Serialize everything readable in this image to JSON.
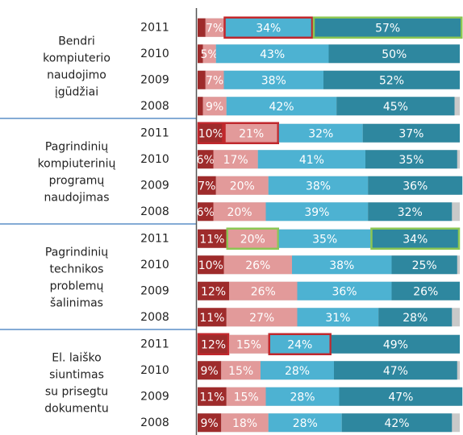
{
  "chart_data": {
    "type": "stacked-bar-horizontal",
    "colors": [
      "#9e2b2b",
      "#e29a9a",
      "#4db2d2",
      "#2e879f"
    ],
    "xlim": [
      0,
      100
    ],
    "groups": [
      {
        "label": [
          "Bendri",
          "kompiuterio",
          "naudojimo",
          "įgūdžiai"
        ],
        "rows": [
          {
            "year": 2011,
            "values": [
              3,
              7,
              34,
              57
            ],
            "value_labels": [
              null,
              "7%",
              "34%",
              "57%"
            ],
            "box_colors": [
              null,
              null,
              "#c0282d",
              "#8cc654"
            ]
          },
          {
            "year": 2010,
            "values": [
              2,
              5,
              43,
              50
            ],
            "value_labels": [
              null,
              "5%",
              "43%",
              "50%"
            ],
            "box_colors": [
              null,
              null,
              null,
              null
            ]
          },
          {
            "year": 2009,
            "values": [
              3,
              7,
              38,
              52
            ],
            "value_labels": [
              null,
              "7%",
              "38%",
              "52%"
            ],
            "box_colors": [
              null,
              null,
              null,
              null
            ]
          },
          {
            "year": 2008,
            "values": [
              2,
              9,
              42,
              45
            ],
            "value_labels": [
              null,
              "9%",
              "42%",
              "45%"
            ],
            "box_colors": [
              null,
              null,
              null,
              null
            ]
          }
        ]
      },
      {
        "label": [
          "Pagrindinių",
          "kompiuterinių",
          "programų",
          "naudojimas"
        ],
        "rows": [
          {
            "year": 2011,
            "values": [
              10,
              21,
              32,
              37
            ],
            "value_labels": [
              "10%",
              "21%",
              "32%",
              "37%"
            ],
            "box_colors": [
              "#c0282d",
              "#c0282d",
              null,
              null
            ]
          },
          {
            "year": 2010,
            "values": [
              6,
              17,
              41,
              35
            ],
            "value_labels": [
              "6%",
              "17%",
              "41%",
              "35%"
            ],
            "box_colors": [
              null,
              null,
              null,
              null
            ]
          },
          {
            "year": 2009,
            "values": [
              7,
              20,
              38,
              36
            ],
            "value_labels": [
              "7%",
              "20%",
              "38%",
              "36%"
            ],
            "box_colors": [
              null,
              null,
              null,
              null
            ]
          },
          {
            "year": 2008,
            "values": [
              6,
              20,
              39,
              32
            ],
            "value_labels": [
              "6%",
              "20%",
              "39%",
              "32%"
            ],
            "box_colors": [
              null,
              null,
              null,
              null
            ]
          }
        ]
      },
      {
        "label": [
          "Pagrindinių",
          "technikos",
          "problemų",
          "šalinimas"
        ],
        "rows": [
          {
            "year": 2011,
            "values": [
              11,
              20,
              35,
              34
            ],
            "value_labels": [
              "11%",
              "20%",
              "35%",
              "34%"
            ],
            "box_colors": [
              null,
              "#8cc654",
              null,
              "#8cc654"
            ]
          },
          {
            "year": 2010,
            "values": [
              10,
              26,
              38,
              25
            ],
            "value_labels": [
              "10%",
              "26%",
              "38%",
              "25%"
            ],
            "box_colors": [
              null,
              null,
              null,
              null
            ]
          },
          {
            "year": 2009,
            "values": [
              12,
              26,
              36,
              26
            ],
            "value_labels": [
              "12%",
              "26%",
              "36%",
              "26%"
            ],
            "box_colors": [
              null,
              null,
              null,
              null
            ]
          },
          {
            "year": 2008,
            "values": [
              11,
              27,
              31,
              28
            ],
            "value_labels": [
              "11%",
              "27%",
              "31%",
              "28%"
            ],
            "box_colors": [
              null,
              null,
              null,
              null
            ]
          }
        ]
      },
      {
        "label": [
          "El. laiško",
          "siuntimas",
          "su prisegtu",
          "dokumentu"
        ],
        "rows": [
          {
            "year": 2011,
            "values": [
              12,
              15,
              24,
              49
            ],
            "value_labels": [
              "12%",
              "15%",
              "24%",
              "49%"
            ],
            "box_colors": [
              "#c0282d",
              null,
              "#c0282d",
              null
            ]
          },
          {
            "year": 2010,
            "values": [
              9,
              15,
              28,
              47
            ],
            "value_labels": [
              "9%",
              "15%",
              "28%",
              "47%"
            ],
            "box_colors": [
              null,
              null,
              null,
              null
            ]
          },
          {
            "year": 2009,
            "values": [
              11,
              15,
              28,
              47
            ],
            "value_labels": [
              "11%",
              "15%",
              "28%",
              "47%"
            ],
            "box_colors": [
              null,
              null,
              null,
              null
            ]
          },
          {
            "year": 2008,
            "values": [
              9,
              18,
              28,
              42
            ],
            "value_labels": [
              "9%",
              "18%",
              "28%",
              "42%"
            ],
            "box_colors": [
              null,
              null,
              null,
              null
            ]
          }
        ]
      }
    ]
  }
}
